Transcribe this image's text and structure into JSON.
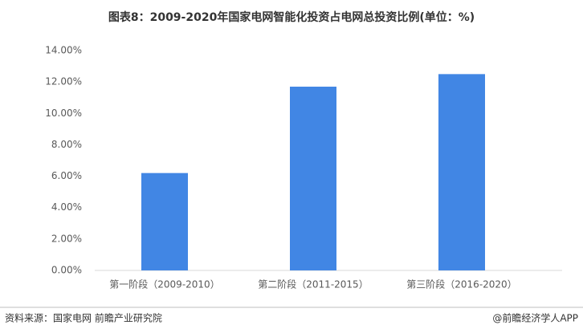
{
  "chart_data": {
    "type": "bar",
    "title": "图表8：2009-2020年国家电网智能化投资占电网总投资比例(单位：%)",
    "categories": [
      "第一阶段（2009-2010）",
      "第二阶段（2011-2015）",
      "第三阶段（2016-2020）"
    ],
    "values": [
      6.2,
      11.7,
      12.5
    ],
    "color": "#4186e4",
    "ylim": [
      0,
      14
    ],
    "yticks": [
      {
        "value": 0,
        "label": "0.00%"
      },
      {
        "value": 2,
        "label": "2.00%"
      },
      {
        "value": 4,
        "label": "4.00%"
      },
      {
        "value": 6,
        "label": "6.00%"
      },
      {
        "value": 8,
        "label": "8.00%"
      },
      {
        "value": 10,
        "label": "10.00%"
      },
      {
        "value": 12,
        "label": "12.00%"
      },
      {
        "value": 14,
        "label": "14.00%"
      }
    ],
    "grid": false
  },
  "footer": {
    "source": "资料来源：国家电网 前瞻产业研究院",
    "credit": "@前瞻经济学人APP"
  }
}
